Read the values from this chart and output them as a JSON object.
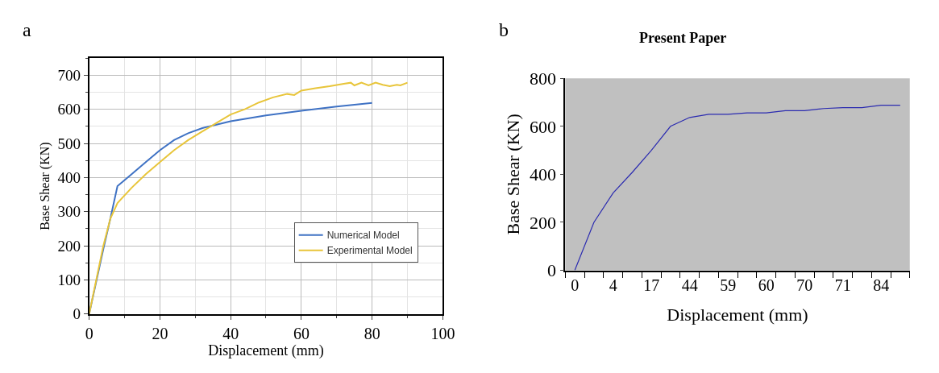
{
  "chart_data": [
    {
      "type": "line",
      "annotations": [
        "a"
      ],
      "xlabel": "Displacement (mm)",
      "ylabel": "Base Shear (KN)",
      "xlim": [
        0,
        100
      ],
      "xticks": [
        0,
        20,
        40,
        60,
        80,
        100
      ],
      "ylim": [
        0,
        750
      ],
      "yticks": [
        0,
        100,
        200,
        300,
        400,
        500,
        600,
        700
      ],
      "grid": true,
      "legend": "bottom right",
      "series": [
        {
          "name": "Numerical Model",
          "color": "#3f72c4",
          "x": [
            0,
            4,
            6,
            8,
            12,
            16,
            20,
            24,
            28,
            32,
            36,
            40,
            50,
            60,
            70,
            80
          ],
          "values": [
            0,
            190,
            280,
            375,
            410,
            445,
            480,
            510,
            530,
            545,
            555,
            565,
            582,
            596,
            608,
            619
          ]
        },
        {
          "name": "Experimental Model",
          "color": "#e8c53a",
          "x": [
            0,
            4,
            6,
            8,
            12,
            16,
            20,
            24,
            28,
            32,
            36,
            40,
            44,
            48,
            52,
            56,
            58,
            60,
            64,
            68,
            72,
            74,
            75,
            77,
            79,
            81,
            83,
            85,
            87,
            88,
            90
          ],
          "values": [
            0,
            200,
            280,
            325,
            370,
            410,
            445,
            480,
            510,
            535,
            560,
            585,
            600,
            620,
            635,
            645,
            642,
            655,
            662,
            668,
            675,
            678,
            670,
            678,
            670,
            678,
            672,
            668,
            672,
            670,
            678
          ]
        }
      ]
    },
    {
      "type": "line",
      "annotations": [
        "b"
      ],
      "title": "Present Paper",
      "xlabel": "Displacement (mm)",
      "ylabel": "Base Shear (KN)",
      "categories": [
        "0",
        null,
        "4",
        null,
        "17",
        null,
        "44",
        null,
        "59",
        null,
        "60",
        null,
        "70",
        null,
        "71",
        null,
        "84",
        null
      ],
      "ylim": [
        0,
        800
      ],
      "yticks": [
        0,
        200,
        400,
        600,
        800
      ],
      "grid": false,
      "legend": false,
      "series": [
        {
          "color": "#2b2bb0",
          "values": [
            0,
            200,
            322,
            408,
            500,
            600,
            637,
            650,
            650,
            656,
            656,
            665,
            665,
            674,
            678,
            678,
            688,
            688
          ]
        }
      ]
    }
  ]
}
